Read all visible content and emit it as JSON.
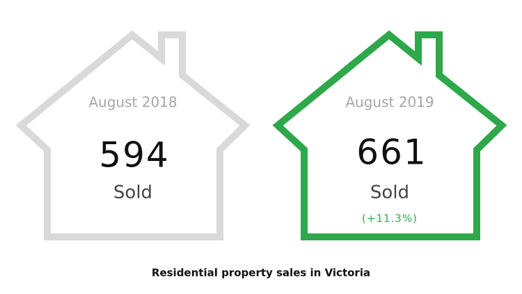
{
  "title": "Residential property sales in Victoria",
  "cards": [
    {
      "period": "August 2018",
      "count": 594,
      "unit": "Sold"
    },
    {
      "period": "August 2019",
      "count": 661,
      "unit": "Sold",
      "change": "(+11.3%)"
    }
  ]
}
